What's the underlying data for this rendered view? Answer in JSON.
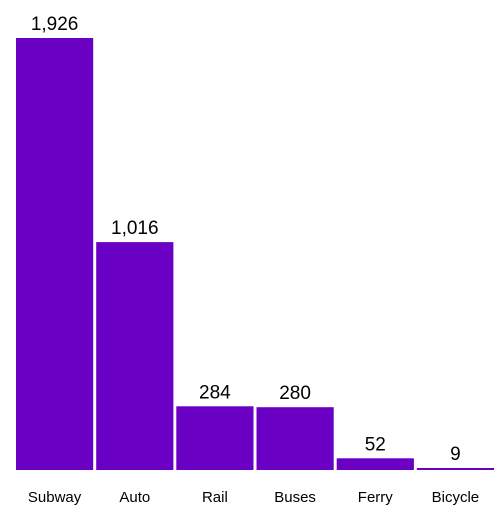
{
  "chart_data": {
    "type": "bar",
    "categories": [
      "Subway",
      "Auto",
      "Rail",
      "Buses",
      "Ferry",
      "Bicycle"
    ],
    "values": [
      1926,
      1016,
      284,
      280,
      52,
      9
    ],
    "value_labels": [
      "1,926",
      "1,016",
      "284",
      "280",
      "52",
      "9"
    ],
    "title": "",
    "xlabel": "",
    "ylabel": "",
    "ylim": [
      0,
      1926
    ],
    "grid": false,
    "legend": "none",
    "bar_color": "#6a00c4"
  }
}
